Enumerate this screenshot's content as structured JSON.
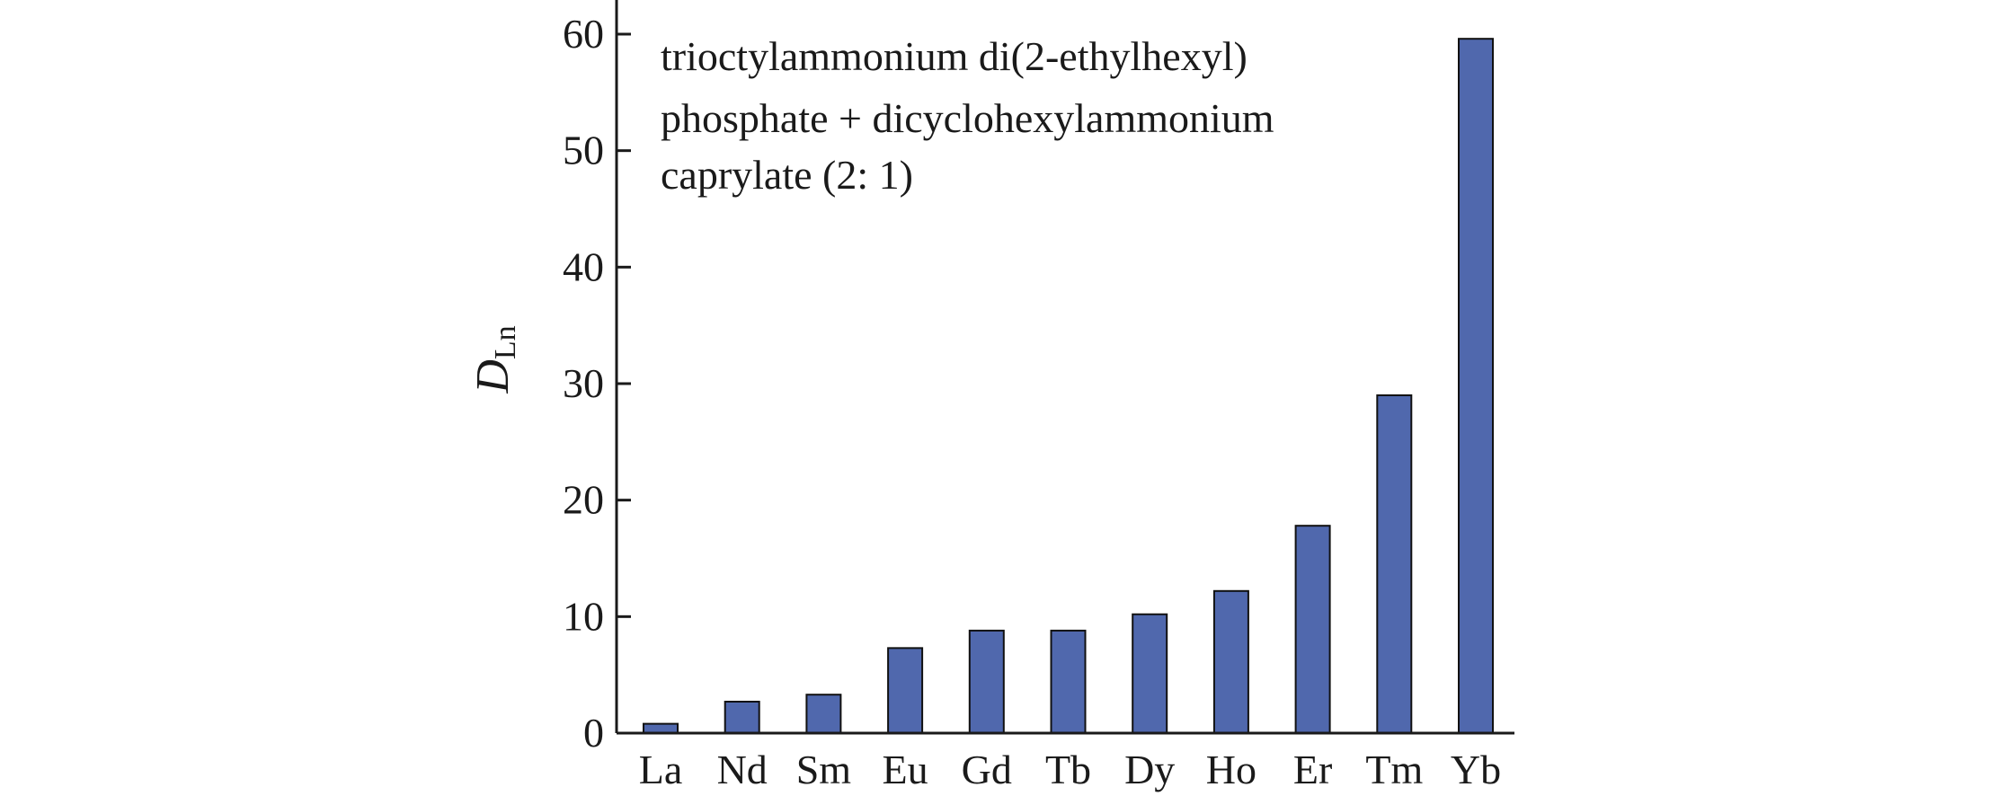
{
  "chart_data": {
    "type": "bar",
    "categories": [
      "La",
      "Nd",
      "Sm",
      "Eu",
      "Gd",
      "Tb",
      "Dy",
      "Ho",
      "Er",
      "Tm",
      "Yb"
    ],
    "values": [
      0.8,
      2.7,
      3.3,
      7.3,
      8.8,
      8.8,
      10.2,
      12.2,
      17.8,
      29.0,
      59.6
    ],
    "ylabel": {
      "main": "D",
      "sub": "Ln"
    },
    "ylim": [
      0,
      60
    ],
    "yticks": [
      0,
      10,
      20,
      30,
      40,
      50,
      60
    ],
    "annotation": [
      "trioctylammonium di(2-ethylhexyl)",
      "phosphate + dicyclohexylammonium",
      "caprylate (2: 1)"
    ],
    "grid": false,
    "legend": "none",
    "colors": {
      "bar": "#5068ad",
      "axis": "#1a1a1a"
    }
  }
}
